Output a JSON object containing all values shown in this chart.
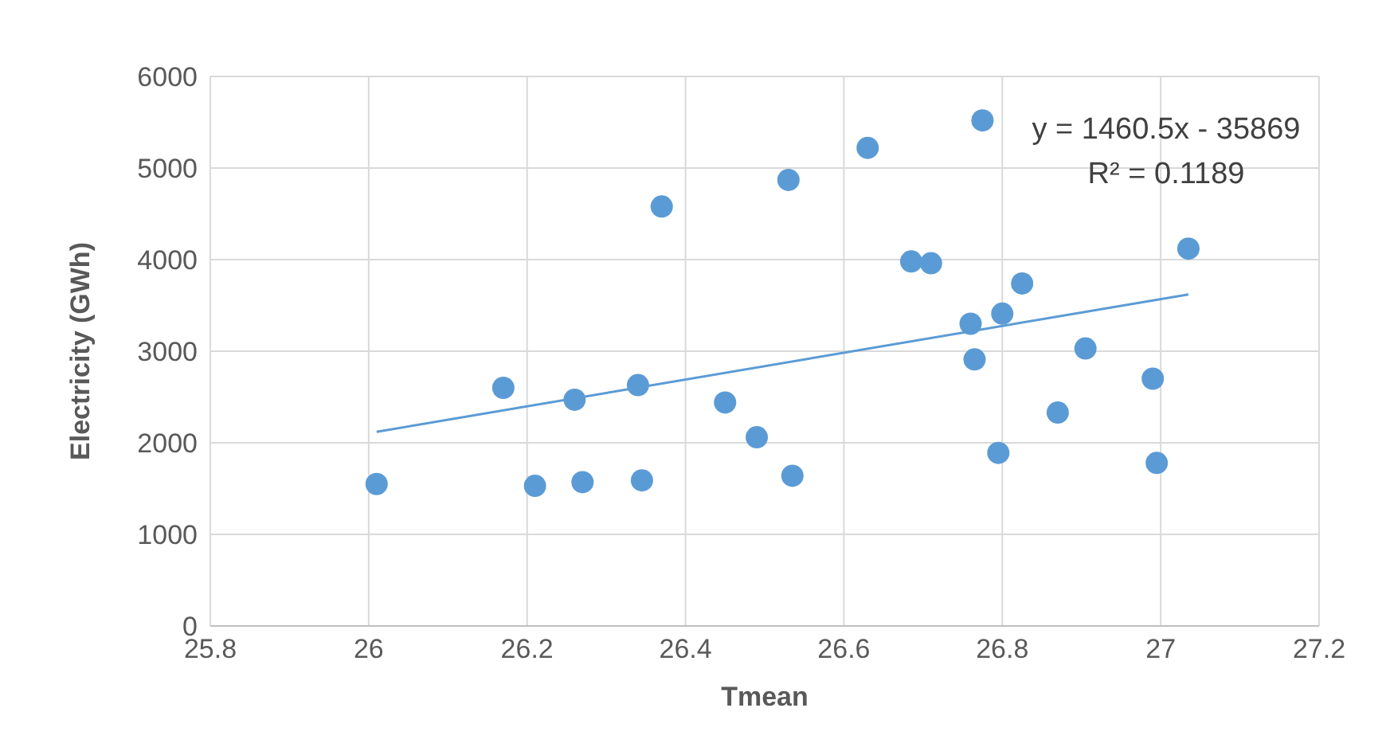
{
  "chart_data": {
    "type": "scatter",
    "xlabel": "Tmean",
    "ylabel": "Electricity (GWh)",
    "series": [
      {
        "color": "#5b9bd5",
        "marker": "circle",
        "x": [
          26.01,
          26.17,
          26.21,
          26.26,
          26.27,
          26.34,
          26.345,
          26.37,
          26.45,
          26.49,
          26.53,
          26.535,
          26.63,
          26.685,
          26.71,
          26.76,
          26.765,
          26.775,
          26.795,
          26.8,
          26.825,
          26.87,
          26.905,
          26.99,
          26.995,
          27.035
        ],
        "values": [
          1550,
          2600,
          1530,
          2470,
          1570,
          2630,
          1590,
          4580,
          2440,
          2060,
          4870,
          1640,
          5220,
          3980,
          3960,
          3300,
          2910,
          5520,
          1890,
          3410,
          3740,
          2330,
          3030,
          2700,
          1780,
          4120
        ]
      },
      {
        "type": "line",
        "color": "#5b9bd5",
        "marker": "none",
        "x": [
          26.01,
          27.035
        ],
        "values": [
          2120,
          3620
        ]
      }
    ],
    "annotations": [
      "y = 1460.5x - 35869",
      "R² = 0.1189"
    ],
    "xlim": [
      25.8,
      27.2
    ],
    "xticks": [
      25.8,
      26,
      26.2,
      26.4,
      26.6,
      26.8,
      27,
      27.2
    ],
    "ylim": [
      0,
      6000
    ],
    "yticks": [
      0,
      1000,
      2000,
      3000,
      4000,
      5000,
      6000
    ],
    "grid": true,
    "line_style": "solid",
    "legend": false
  }
}
